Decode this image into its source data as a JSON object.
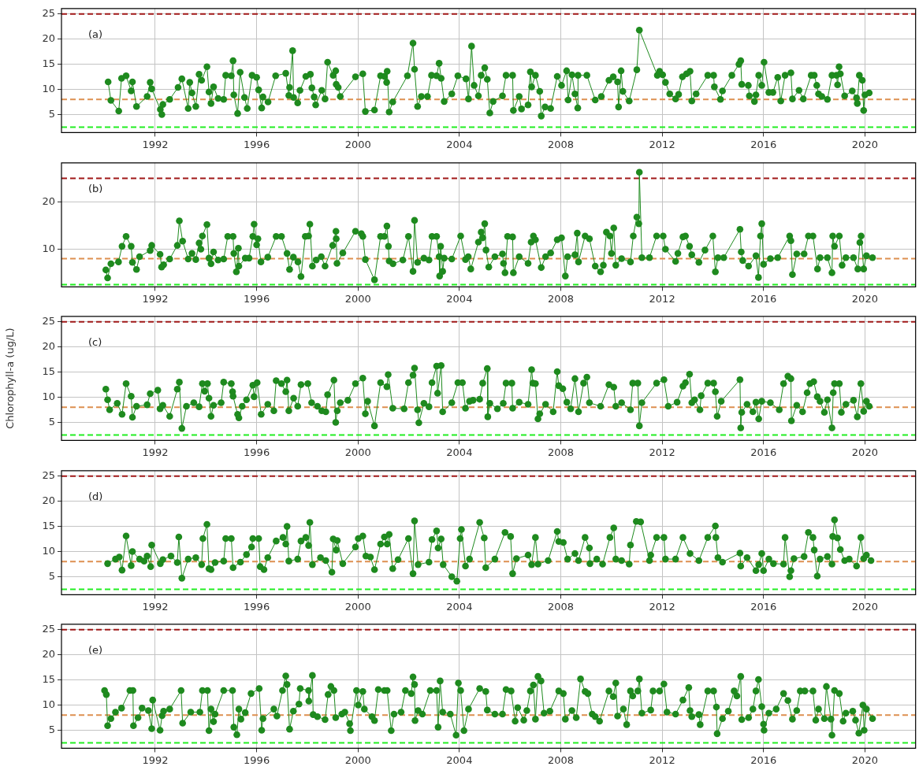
{
  "chart_data": [
    {
      "type": "line",
      "annotations": [
        "(a)"
      ],
      "marker": "circle",
      "grid": true,
      "xlim": [
        1988.3,
        2022.0
      ],
      "xticks": [
        1992,
        1996,
        2000,
        2004,
        2008,
        2012,
        2016,
        2020
      ],
      "ylim": [
        1.4,
        26.1
      ],
      "yticks": [
        5,
        10,
        15,
        20,
        25
      ],
      "ref_lines": [
        {
          "axis": "y",
          "value": 25,
          "color": "#a01818",
          "line_style": "dashed"
        },
        {
          "axis": "y",
          "value": 8,
          "color": "#dd9050",
          "line_style": "dashed"
        },
        {
          "axis": "y",
          "value": 2.5,
          "color": "#22ee22",
          "line_style": "dashed"
        }
      ],
      "x": [
        1990.14,
        1990.25,
        1990.56,
        1990.67,
        1990.85,
        1991.05,
        1991.1,
        1991.26,
        1991.68,
        1991.8,
        1991.86,
        1992.2,
        1992.26,
        1992.3,
        1992.57,
        1992.9,
        1993.05,
        1993.3,
        1993.36,
        1993.45,
        1993.6,
        1993.73,
        1993.83,
        1994.04,
        1994.12,
        1994.2,
        1994.3,
        1994.48,
        1994.7,
        1994.78,
        1995.0,
        1995.07,
        1995.1,
        1995.25,
        1995.35,
        1995.52,
        1995.63,
        1995.82,
        1996.0,
        1996.08,
        1996.2,
        1996.25,
        1996.45,
        1996.75,
        1997.15,
        1997.27,
        1997.3,
        1997.42,
        1997.46,
        1997.62,
        1997.71,
        1997.94,
        1998.12,
        1998.18,
        1998.27,
        1998.33,
        1998.57,
        1998.7,
        1998.8,
        1999.02,
        1999.12,
        1999.14,
        1999.22,
        1999.3,
        1999.9,
        2000.19,
        2000.29,
        2000.65,
        2000.89,
        2001.04,
        2001.13,
        2001.15,
        2001.23,
        2001.37,
        2001.95,
        2002.17,
        2002.23,
        2002.35,
        2002.5,
        2002.74,
        2002.9,
        2003.1,
        2003.2,
        2003.28,
        2003.4,
        2003.7,
        2003.94,
        2004.26,
        2004.36,
        2004.48,
        2004.58,
        2004.75,
        2004.86,
        2005.0,
        2005.1,
        2005.2,
        2005.33,
        2005.7,
        2005.84,
        2006.1,
        2006.13,
        2006.36,
        2006.45,
        2006.71,
        2006.8,
        2006.85,
        2007.0,
        2007.17,
        2007.23,
        2007.38,
        2007.6,
        2007.86,
        2008.03,
        2008.23,
        2008.29,
        2008.44,
        2008.56,
        2008.67,
        2008.68,
        2009.03,
        2009.36,
        2009.6,
        2009.9,
        2010.07,
        2010.24,
        2010.28,
        2010.38,
        2010.45,
        2010.7,
        2011.0,
        2011.1,
        2011.81,
        2011.9,
        2012.02,
        2012.13,
        2012.3,
        2012.53,
        2012.65,
        2012.8,
        2012.96,
        2013.1,
        2013.17,
        2013.34,
        2013.8,
        2014.03,
        2014.06,
        2014.3,
        2014.38,
        2014.75,
        2015.03,
        2015.1,
        2015.14,
        2015.4,
        2015.44,
        2015.64,
        2015.7,
        2015.81,
        2015.93,
        2016.02,
        2016.21,
        2016.37,
        2016.56,
        2016.68,
        2016.85,
        2017.08,
        2017.14,
        2017.4,
        2017.57,
        2017.88,
        2018.0,
        2018.1,
        2018.17,
        2018.3,
        2018.52,
        2018.7,
        2018.88,
        2018.92,
        2018.98,
        2019.03,
        2019.2,
        2019.5,
        2019.67,
        2019.7,
        2019.78,
        2019.9,
        2019.95,
        2020.0,
        2020.17
      ],
      "series": [
        {
          "color": "#1e8a1e",
          "values": [
            11.5,
            7.8,
            5.7,
            12.2,
            12.7,
            9.7,
            11.5,
            6.6,
            8.6,
            11.4,
            10.1,
            6,
            5,
            7,
            8,
            10.4,
            12.1,
            6.2,
            11.4,
            9.3,
            6.6,
            13,
            11.8,
            14.5,
            9.5,
            7.2,
            10.5,
            8.2,
            8,
            12.8,
            12.7,
            15.7,
            8.9,
            5.2,
            13.4,
            8.4,
            6.2,
            12.8,
            12.4,
            9.9,
            6.3,
            8.5,
            7.5,
            12.7,
            13.2,
            8.8,
            10.4,
            17.7,
            8.4,
            7.3,
            9.8,
            12.6,
            13,
            10.3,
            8.5,
            6.9,
            9.8,
            8.1,
            15.4,
            12.8,
            13.7,
            11,
            10.4,
            8.6,
            12.5,
            13.1,
            5.6,
            5.9,
            12.7,
            12.6,
            11.4,
            13.6,
            5.5,
            7.5,
            12.7,
            19.2,
            14,
            6.6,
            8.6,
            8.6,
            12.8,
            12.7,
            15.2,
            12.2,
            7.6,
            9.1,
            12.7,
            12.1,
            8.1,
            18.6,
            10.8,
            8.7,
            12.8,
            14.3,
            12,
            5.3,
            7.6,
            8.7,
            12.8,
            12.8,
            5.8,
            8.6,
            6.1,
            6.9,
            13.5,
            10.5,
            12.8,
            9.6,
            4.7,
            6.5,
            6.2,
            12.6,
            10.8,
            13.7,
            7.9,
            12.9,
            9.1,
            6.3,
            12.8,
            12.8,
            7.9,
            8.6,
            11.8,
            12.5,
            11.5,
            6.5,
            13.7,
            9.6,
            7.7,
            13.9,
            21.8,
            12.8,
            13.6,
            12.9,
            11.4,
            9.1,
            8.1,
            9,
            12.5,
            13.1,
            13.6,
            7.7,
            9.1,
            12.8,
            12.8,
            10.5,
            8,
            9.7,
            12.8,
            15,
            15.7,
            11,
            10.8,
            8.7,
            7.6,
            8.9,
            12.8,
            10.8,
            15.4,
            9.4,
            9.4,
            12.4,
            7.7,
            12.8,
            13.3,
            8.1,
            9.8,
            8.1,
            12.8,
            12.8,
            10.8,
            9.1,
            8.6,
            8,
            12.8,
            12.8,
            10.9,
            14.5,
            13.1,
            8.7,
            9.7,
            8.3,
            7.2,
            12.8,
            11.8,
            5.8,
            8.9,
            9.3
          ]
        }
      ]
    },
    {
      "type": "line",
      "annotations": [
        "(b)"
      ],
      "marker": "circle",
      "grid": true,
      "xlim": [
        1988.3,
        2022.0
      ],
      "xticks": [
        1992,
        1996,
        2000,
        2004,
        2008,
        2012,
        2016,
        2020
      ],
      "ylim": [
        2,
        28.3
      ],
      "yticks": [
        10,
        20
      ],
      "ref_lines": [
        {
          "axis": "y",
          "value": 25,
          "color": "#a01818",
          "line_style": "dashed"
        },
        {
          "axis": "y",
          "value": 8,
          "color": "#dd9050",
          "line_style": "dashed"
        },
        {
          "axis": "y",
          "value": 2.5,
          "color": "#22ee22",
          "line_style": "dashed"
        }
      ],
      "x": [
        1990.05,
        1990.12,
        1990.25,
        1990.55,
        1990.69,
        1990.85,
        1991.05,
        1991.1,
        1991.26,
        1991.38,
        1991.8,
        1991.86,
        1992.19,
        1992.25,
        1992.33,
        1992.57,
        1992.87,
        1992.95,
        1993.08,
        1993.3,
        1993.45,
        1993.6,
        1993.73,
        1993.8,
        1993.86,
        1994.04,
        1994.12,
        1994.2,
        1994.3,
        1994.48,
        1994.7,
        1994.86,
        1995.07,
        1995.1,
        1995.2,
        1995.28,
        1995.3,
        1995.55,
        1995.7,
        1995.85,
        1995.9,
        1996.0,
        1996.05,
        1996.17,
        1996.44,
        1996.77,
        1996.98,
        1997.2,
        1997.3,
        1997.45,
        1997.63,
        1997.75,
        1997.92,
        1998.05,
        1998.1,
        1998.2,
        1998.35,
        1998.55,
        1998.7,
        1999.0,
        1999.13,
        1999.14,
        1999.17,
        1999.4,
        1999.9,
        2000.13,
        2000.19,
        2000.29,
        2000.65,
        2000.89,
        2001.04,
        2001.14,
        2001.2,
        2001.23,
        2001.38,
        2001.77,
        2001.99,
        2002.17,
        2002.23,
        2002.35,
        2002.6,
        2002.8,
        2002.92,
        2003.1,
        2003.2,
        2003.22,
        2003.26,
        2003.34,
        2003.4,
        2003.7,
        2004.05,
        2004.24,
        2004.35,
        2004.45,
        2004.75,
        2004.86,
        2004.92,
        2005.0,
        2005.05,
        2005.16,
        2005.4,
        2005.7,
        2005.74,
        2005.8,
        2005.9,
        2006.1,
        2006.13,
        2006.36,
        2006.71,
        2006.83,
        2006.92,
        2007.0,
        2007.23,
        2007.4,
        2007.6,
        2007.86,
        2008.03,
        2008.18,
        2008.27,
        2008.56,
        2008.65,
        2008.7,
        2008.96,
        2009.13,
        2009.36,
        2009.57,
        2009.68,
        2009.8,
        2009.94,
        2010.0,
        2010.09,
        2010.17,
        2010.4,
        2010.75,
        2010.86,
        2011.0,
        2011.08,
        2011.1,
        2011.2,
        2011.5,
        2011.78,
        2012.04,
        2012.13,
        2012.53,
        2012.62,
        2012.82,
        2012.92,
        2013.08,
        2013.17,
        2013.45,
        2013.69,
        2014.0,
        2014.1,
        2014.2,
        2014.43,
        2015.07,
        2015.12,
        2015.18,
        2015.41,
        2015.7,
        2015.8,
        2015.88,
        2015.93,
        2016.0,
        2016.27,
        2016.56,
        2017.03,
        2017.08,
        2017.14,
        2017.31,
        2017.6,
        2017.77,
        2017.95,
        2018.13,
        2018.23,
        2018.52,
        2018.7,
        2018.73,
        2018.8,
        2018.99,
        2019.1,
        2019.25,
        2019.55,
        2019.72,
        2019.8,
        2019.85,
        2019.95,
        2020.06,
        2020.3
      ],
      "series": [
        {
          "color": "#1e8a1e",
          "values": [
            5.6,
            3.9,
            6.9,
            7.3,
            10.6,
            12.7,
            10.6,
            7.2,
            5.7,
            8.4,
            9.7,
            10.8,
            8.9,
            6.2,
            6.7,
            7.9,
            10.8,
            16,
            11.7,
            7.9,
            9.1,
            7.8,
            11.3,
            10,
            12.8,
            15.2,
            8.1,
            6.9,
            9.4,
            7.7,
            7.9,
            12.7,
            12.7,
            9.1,
            5.2,
            10.2,
            6.4,
            8.1,
            8.1,
            12.7,
            15.3,
            10.9,
            12.2,
            7.3,
            8.3,
            12.7,
            12.7,
            9.1,
            5.7,
            8.3,
            7.3,
            4.2,
            12.7,
            12.8,
            15.3,
            6.4,
            7.7,
            8.4,
            6.4,
            10.8,
            13.8,
            12.2,
            7,
            9.2,
            13.8,
            13.3,
            12.7,
            7.8,
            3.5,
            12.7,
            12.7,
            14.9,
            10.6,
            7.5,
            6.9,
            7.7,
            12.7,
            5.3,
            16.1,
            7.2,
            8.1,
            7.7,
            12.7,
            12.7,
            8.4,
            4.3,
            10.6,
            5.3,
            8.1,
            7.9,
            12.8,
            7.8,
            8.4,
            5.8,
            11.5,
            13.6,
            12.4,
            15.4,
            9.8,
            6.2,
            8.4,
            9,
            7,
            5,
            12.7,
            12.6,
            5,
            8.4,
            7,
            11.5,
            12.8,
            12,
            6.1,
            8.4,
            9.2,
            12,
            12.4,
            4.3,
            8.4,
            8.8,
            13.4,
            7.3,
            12.8,
            12.2,
            6.4,
            5.2,
            6.6,
            13.6,
            12.8,
            9.1,
            14.5,
            6.6,
            8,
            7.3,
            12.8,
            16.8,
            15.4,
            26.3,
            8.2,
            8.2,
            12.8,
            12.8,
            10,
            7.4,
            9.1,
            12.6,
            12.8,
            10.6,
            8.8,
            7.2,
            9.8,
            12.8,
            5.2,
            8.2,
            8.2,
            14.2,
            9.4,
            7.6,
            6.4,
            8.6,
            4,
            12.8,
            15.4,
            6.8,
            8,
            8.2,
            12.8,
            11.8,
            4.6,
            9,
            9,
            12.8,
            12.8,
            5.8,
            8.2,
            8.2,
            5,
            12.8,
            10.6,
            12.8,
            6.6,
            8.2,
            8.2,
            5.8,
            11.4,
            12.8,
            5.8,
            8.6,
            8.2
          ]
        }
      ]
    },
    {
      "type": "line",
      "annotations": [
        "(c)"
      ],
      "marker": "circle",
      "grid": true,
      "ylabel": "Chlorophyll-a (ug/L)",
      "xlim": [
        1988.3,
        2022.0
      ],
      "xticks": [
        1992,
        1996,
        2000,
        2004,
        2008,
        2012,
        2016,
        2020
      ],
      "ylim": [
        1.4,
        26.1
      ],
      "yticks": [
        5,
        10,
        15,
        20,
        25
      ],
      "ref_lines": [
        {
          "axis": "y",
          "value": 25,
          "color": "#a01818",
          "line_style": "dashed"
        },
        {
          "axis": "y",
          "value": 8,
          "color": "#dd9050",
          "line_style": "dashed"
        },
        {
          "axis": "y",
          "value": 2.5,
          "color": "#22ee22",
          "line_style": "dashed"
        }
      ],
      "x": [
        1990.05,
        1990.12,
        1990.2,
        1990.5,
        1990.69,
        1990.85,
        1991.05,
        1991.1,
        1991.26,
        1991.68,
        1991.8,
        1992.1,
        1992.19,
        1992.3,
        1992.57,
        1992.87,
        1992.95,
        1993.05,
        1993.23,
        1993.52,
        1993.73,
        1993.86,
        1993.95,
        1994.06,
        1994.12,
        1994.2,
        1994.3,
        1994.6,
        1994.7,
        1995.0,
        1995.05,
        1995.07,
        1995.25,
        1995.3,
        1995.43,
        1995.6,
        1995.85,
        1995.9,
        1996.02,
        1996.18,
        1996.44,
        1996.68,
        1996.77,
        1996.98,
        1997.15,
        1997.2,
        1997.27,
        1997.46,
        1997.62,
        1997.75,
        1998.02,
        1998.17,
        1998.4,
        1998.57,
        1998.73,
        1998.8,
        1999.05,
        1999.12,
        1999.18,
        1999.3,
        1999.6,
        1999.9,
        2000.19,
        2000.29,
        2000.38,
        2000.65,
        2000.89,
        2001.14,
        2001.19,
        2001.37,
        2001.82,
        2001.99,
        2002.17,
        2002.23,
        2002.35,
        2002.4,
        2002.6,
        2002.8,
        2002.92,
        2003.1,
        2003.14,
        2003.28,
        2003.34,
        2003.7,
        2003.94,
        2004.12,
        2004.24,
        2004.4,
        2004.54,
        2004.8,
        2004.92,
        2005.1,
        2005.12,
        2005.2,
        2005.5,
        2005.73,
        2005.84,
        2006.07,
        2006.1,
        2006.36,
        2006.71,
        2006.85,
        2006.9,
        2007.0,
        2007.1,
        2007.17,
        2007.4,
        2007.7,
        2007.86,
        2007.92,
        2008.08,
        2008.24,
        2008.39,
        2008.56,
        2008.7,
        2008.9,
        2009.03,
        2009.13,
        2009.57,
        2009.9,
        2010.09,
        2010.17,
        2010.4,
        2010.75,
        2010.84,
        2011.04,
        2011.1,
        2011.2,
        2011.78,
        2012.07,
        2012.24,
        2012.59,
        2012.82,
        2012.92,
        2013.08,
        2013.17,
        2013.28,
        2013.49,
        2013.54,
        2013.8,
        2014.03,
        2014.1,
        2014.17,
        2014.33,
        2015.07,
        2015.1,
        2015.14,
        2015.35,
        2015.58,
        2015.7,
        2015.81,
        2015.93,
        2016.27,
        2016.62,
        2016.79,
        2016.96,
        2017.08,
        2017.1,
        2017.31,
        2017.54,
        2017.72,
        2017.83,
        2017.98,
        2018.12,
        2018.23,
        2018.4,
        2018.52,
        2018.7,
        2018.75,
        2018.8,
        2018.99,
        2019.07,
        2019.25,
        2019.55,
        2019.7,
        2019.84,
        2019.95,
        2020.06,
        2020.17
      ],
      "series": [
        {
          "color": "#1e8a1e",
          "values": [
            11.6,
            9.5,
            7.5,
            8.8,
            6.6,
            12.7,
            10.2,
            6,
            8.2,
            8.5,
            10.7,
            11.4,
            7.7,
            8.4,
            6.2,
            11.6,
            13,
            3.8,
            8.2,
            8.9,
            8.1,
            12.7,
            11.2,
            12.7,
            9.8,
            6.2,
            8.4,
            8.9,
            13,
            12.7,
            11.1,
            10.2,
            6.6,
            5.9,
            8.2,
            9.5,
            12.4,
            10.1,
            12.9,
            6.6,
            8.6,
            7.3,
            13.3,
            12.7,
            11.1,
            13.4,
            7.3,
            9.8,
            8.2,
            12.5,
            12.7,
            8.9,
            8.2,
            7.3,
            7.1,
            10.5,
            13.4,
            5,
            7.3,
            8.9,
            9.4,
            12.7,
            13.8,
            6.7,
            9.2,
            4.3,
            12.9,
            12.1,
            14.5,
            7.8,
            7.7,
            12.9,
            14.4,
            15.8,
            7.5,
            4.9,
            8.8,
            8.1,
            12.9,
            16.2,
            10.8,
            16.3,
            7.1,
            8.9,
            12.9,
            12.9,
            7.8,
            9.2,
            9.4,
            9.6,
            12.8,
            15.7,
            6.1,
            8.8,
            7.7,
            8.8,
            12.8,
            12.8,
            7.8,
            9,
            8.6,
            15.5,
            12.8,
            12.7,
            5.7,
            6.7,
            8.6,
            7.1,
            15.1,
            12.3,
            11.7,
            9,
            7.7,
            13.7,
            7.1,
            12.8,
            14,
            8.9,
            8.2,
            12.5,
            12,
            8.2,
            8.9,
            7.5,
            12.8,
            12.8,
            4.3,
            8.9,
            12.8,
            13.5,
            8.2,
            9,
            12.2,
            12.9,
            14.6,
            8.9,
            9.5,
            7.5,
            10.3,
            12.8,
            12.8,
            11.1,
            6.2,
            9.2,
            13.5,
            3.9,
            7,
            8.6,
            7.1,
            9,
            5.7,
            9.2,
            8.9,
            7.5,
            12.7,
            14.2,
            13.7,
            5.3,
            8.4,
            7.1,
            10.9,
            12.7,
            13.1,
            10.1,
            9.2,
            7,
            9.5,
            3.9,
            10.9,
            12.7,
            12.7,
            7,
            8.6,
            9.4,
            6.1,
            12.7,
            7.2,
            9.2,
            8.2
          ]
        }
      ]
    },
    {
      "type": "line",
      "annotations": [
        "(d)"
      ],
      "marker": "circle",
      "grid": true,
      "xlim": [
        1988.3,
        2022.0
      ],
      "xticks": [
        1992,
        1996,
        2000,
        2004,
        2008,
        2012,
        2016,
        2020
      ],
      "ylim": [
        1.4,
        26.1
      ],
      "yticks": [
        5,
        10,
        15,
        20,
        25
      ],
      "ref_lines": [
        {
          "axis": "y",
          "value": 25,
          "color": "#a01818",
          "line_style": "dashed"
        },
        {
          "axis": "y",
          "value": 8,
          "color": "#dd9050",
          "line_style": "dashed"
        },
        {
          "axis": "y",
          "value": 2.5,
          "color": "#22ee22",
          "line_style": "dashed"
        }
      ],
      "x": [
        1990.12,
        1990.43,
        1990.58,
        1990.69,
        1990.85,
        1991.05,
        1991.1,
        1991.38,
        1991.56,
        1991.68,
        1991.82,
        1991.86,
        1992.2,
        1992.3,
        1992.62,
        1992.87,
        1992.93,
        1993.05,
        1993.3,
        1993.6,
        1993.83,
        1993.88,
        1994.04,
        1994.12,
        1994.2,
        1994.36,
        1994.7,
        1994.78,
        1995.0,
        1995.07,
        1995.36,
        1995.6,
        1995.8,
        1995.85,
        1996.08,
        1996.14,
        1996.29,
        1996.44,
        1996.77,
        1997.04,
        1997.15,
        1997.2,
        1997.27,
        1997.62,
        1997.75,
        1997.94,
        1998.05,
        1998.1,
        1998.2,
        1998.52,
        1998.73,
        1998.97,
        1999.02,
        1999.14,
        1999.18,
        1999.4,
        1999.9,
        2000.01,
        2000.19,
        2000.31,
        2000.49,
        2000.65,
        2000.89,
        2001.04,
        2001.15,
        2001.23,
        2001.37,
        2001.58,
        2001.99,
        2002.17,
        2002.23,
        2002.37,
        2002.8,
        2002.92,
        2003.1,
        2003.16,
        2003.28,
        2003.36,
        2003.7,
        2003.9,
        2004.03,
        2004.08,
        2004.24,
        2004.4,
        2004.8,
        2004.98,
        2005.04,
        2005.4,
        2005.8,
        2006.02,
        2006.1,
        2006.25,
        2006.71,
        2006.85,
        2007.0,
        2007.1,
        2007.5,
        2007.86,
        2007.92,
        2008.1,
        2008.27,
        2008.56,
        2008.7,
        2008.96,
        2009.13,
        2009.15,
        2009.42,
        2009.65,
        2009.94,
        2010.09,
        2010.17,
        2010.4,
        2010.7,
        2010.75,
        2010.98,
        2011.15,
        2011.5,
        2011.55,
        2011.78,
        2012.07,
        2012.13,
        2012.53,
        2012.82,
        2013.1,
        2013.45,
        2013.8,
        2014.1,
        2014.12,
        2014.2,
        2014.38,
        2015.07,
        2015.1,
        2015.35,
        2015.7,
        2015.81,
        2015.93,
        2016.0,
        2016.21,
        2016.39,
        2016.79,
        2016.85,
        2017.03,
        2017.08,
        2017.2,
        2017.6,
        2017.77,
        2017.95,
        2018.0,
        2018.12,
        2018.23,
        2018.52,
        2018.7,
        2018.73,
        2018.8,
        2018.92,
        2019.03,
        2019.2,
        2019.38,
        2019.67,
        2019.84,
        2019.95,
        2020.06,
        2020.24
      ],
      "series": [
        {
          "color": "#1e8a1e",
          "values": [
            7.6,
            8.5,
            8.9,
            6.3,
            13.1,
            7.2,
            10,
            8.5,
            8.1,
            9.1,
            7,
            11.3,
            7.6,
            8.4,
            9.1,
            7.8,
            12.9,
            4.7,
            8.5,
            8.8,
            7.4,
            12.6,
            15.4,
            6.6,
            6.4,
            7.8,
            8.1,
            12.6,
            12.6,
            6.8,
            7.9,
            9.4,
            10.9,
            12.6,
            12.6,
            7,
            6.4,
            8.8,
            12.1,
            12.8,
            11.5,
            15,
            8.1,
            8.5,
            12.1,
            12.8,
            11.2,
            15.8,
            7.4,
            8.8,
            8.2,
            5.9,
            12.5,
            10.3,
            12.2,
            7.6,
            10.9,
            12.6,
            13.1,
            9.1,
            8.9,
            6.4,
            11.5,
            12.9,
            11.5,
            13.4,
            6.6,
            8.4,
            12.6,
            5.6,
            16.1,
            7.4,
            7.9,
            12.4,
            14.1,
            10.7,
            12.5,
            7.4,
            5,
            4.1,
            12.6,
            14.4,
            7.1,
            8.5,
            15.8,
            12.7,
            6.8,
            8.5,
            13.8,
            13,
            5.6,
            8.6,
            9.3,
            7.4,
            12.8,
            7.5,
            8.2,
            14,
            12,
            11.8,
            8.5,
            9.6,
            8.2,
            12.8,
            10.7,
            7.6,
            8.5,
            7.5,
            12.8,
            14.7,
            8.5,
            8.2,
            7.5,
            11.3,
            16,
            15.9,
            8.2,
            9.3,
            12.8,
            12.8,
            8.5,
            8.5,
            12.8,
            9.6,
            8.2,
            12.8,
            15.1,
            12.8,
            8.8,
            7.9,
            9.7,
            7.1,
            8.8,
            6.2,
            7.4,
            9.6,
            6.2,
            8.5,
            7.6,
            7.5,
            12.8,
            5,
            6.2,
            8.6,
            9,
            13.8,
            12.8,
            10.3,
            5.1,
            8.5,
            9,
            7.5,
            13,
            16.3,
            12.7,
            10.4,
            8.2,
            8.5,
            7.1,
            12.8,
            8.6,
            9.3,
            8.2
          ]
        }
      ]
    },
    {
      "type": "line",
      "annotations": [
        "(e)"
      ],
      "marker": "circle",
      "grid": true,
      "xlim": [
        1988.3,
        2022.0
      ],
      "xticks": [
        1992,
        1996,
        2000,
        2004,
        2008,
        2012,
        2016,
        2020
      ],
      "ylim": [
        1.4,
        26.1
      ],
      "yticks": [
        5,
        10,
        15,
        20,
        25
      ],
      "ref_lines": [
        {
          "axis": "y",
          "value": 25,
          "color": "#a01818",
          "line_style": "dashed"
        },
        {
          "axis": "y",
          "value": 8,
          "color": "#dd9050",
          "line_style": "dashed"
        },
        {
          "axis": "y",
          "value": 2.5,
          "color": "#22ee22",
          "line_style": "dashed"
        }
      ],
      "x": [
        1990.0,
        1990.07,
        1990.12,
        1990.25,
        1990.43,
        1990.67,
        1991.0,
        1991.12,
        1991.14,
        1991.32,
        1991.48,
        1991.73,
        1991.86,
        1991.9,
        1992.19,
        1992.27,
        1992.33,
        1992.57,
        1993.02,
        1993.08,
        1993.4,
        1993.76,
        1993.86,
        1994.06,
        1994.12,
        1994.2,
        1994.3,
        1994.36,
        1994.7,
        1995.05,
        1995.1,
        1995.22,
        1995.3,
        1995.38,
        1995.55,
        1995.78,
        1996.1,
        1996.2,
        1996.25,
        1996.68,
        1996.8,
        1997.02,
        1997.15,
        1997.2,
        1997.3,
        1997.45,
        1997.67,
        1997.72,
        1998.05,
        1998.06,
        1998.2,
        1998.23,
        1998.4,
        1998.7,
        1998.82,
        1998.93,
        1999.05,
        1999.12,
        1999.36,
        1999.48,
        1999.67,
        1999.7,
        1999.94,
        2000.01,
        2000.19,
        2000.25,
        2000.55,
        2000.65,
        2000.8,
        2001.04,
        2001.15,
        2001.31,
        2001.42,
        2001.7,
        2001.87,
        2002.1,
        2002.17,
        2002.23,
        2002.25,
        2002.37,
        2002.54,
        2002.85,
        2003.1,
        2003.16,
        2003.24,
        2003.34,
        2003.64,
        2003.87,
        2003.96,
        2004.05,
        2004.18,
        2004.36,
        2004.8,
        2005.04,
        2005.1,
        2005.4,
        2005.7,
        2005.84,
        2006.04,
        2006.2,
        2006.3,
        2006.54,
        2006.66,
        2006.8,
        2006.92,
        2007.0,
        2007.1,
        2007.22,
        2007.34,
        2007.57,
        2007.92,
        2008.1,
        2008.18,
        2008.44,
        2008.61,
        2008.78,
        2008.96,
        2009.07,
        2009.24,
        2009.36,
        2009.53,
        2009.9,
        2010.07,
        2010.17,
        2010.24,
        2010.47,
        2010.6,
        2010.75,
        2010.84,
        2011.04,
        2011.1,
        2011.2,
        2011.55,
        2011.64,
        2011.9,
        2012.07,
        2012.19,
        2012.53,
        2012.82,
        2013.05,
        2013.1,
        2013.17,
        2013.45,
        2013.5,
        2013.8,
        2014.03,
        2014.14,
        2014.17,
        2014.38,
        2014.61,
        2014.84,
        2014.95,
        2015.1,
        2015.14,
        2015.41,
        2015.58,
        2015.7,
        2015.8,
        2015.93,
        2016.0,
        2016.02,
        2016.21,
        2016.5,
        2016.79,
        2016.96,
        2017.14,
        2017.31,
        2017.45,
        2017.63,
        2017.95,
        2018.06,
        2018.17,
        2018.4,
        2018.48,
        2018.66,
        2018.7,
        2018.8,
        2018.99,
        2019.14,
        2019.25,
        2019.52,
        2019.63,
        2019.76,
        2019.92,
        2019.97,
        2020.06,
        2020.3
      ],
      "series": [
        {
          "color": "#1e8a1e",
          "values": [
            12.9,
            12.1,
            5.9,
            7.3,
            8.6,
            9.4,
            12.9,
            12.9,
            5.9,
            7.5,
            9.4,
            8.9,
            5.3,
            11,
            5,
            7.9,
            8.8,
            9.2,
            12.9,
            6.4,
            8.6,
            8.6,
            12.9,
            12.9,
            4.9,
            9.2,
            6.7,
            8.2,
            12.9,
            12.9,
            5.6,
            4.1,
            9.2,
            7.2,
            8.5,
            12.3,
            13.3,
            5,
            7.3,
            9.2,
            7.8,
            12.9,
            15.8,
            14.1,
            5.2,
            8.8,
            10.2,
            13.3,
            12.9,
            10.8,
            15.9,
            8.1,
            7.7,
            7.1,
            12.1,
            13.7,
            12.9,
            7.5,
            8.2,
            8.6,
            6.3,
            4.9,
            12.9,
            10,
            12.7,
            9.2,
            7.7,
            6.9,
            13.1,
            12.9,
            12.9,
            4.9,
            8.2,
            8.6,
            12.9,
            12.3,
            15.6,
            14.1,
            6.9,
            8.9,
            8.2,
            12.9,
            12.9,
            5.6,
            14.8,
            8.6,
            8.2,
            4,
            14.4,
            12.9,
            4.9,
            9.2,
            13.3,
            12.7,
            9,
            8.2,
            8.2,
            13.1,
            12.8,
            6.8,
            9.5,
            7,
            8.9,
            12.8,
            14,
            7.2,
            15.7,
            14.8,
            8.4,
            8.8,
            12.8,
            12.3,
            7.2,
            8.9,
            7.5,
            15.2,
            12.7,
            12.3,
            8.2,
            7.7,
            6.8,
            12.8,
            11.7,
            14.4,
            7.8,
            9.2,
            6.1,
            12.8,
            11.8,
            12.8,
            15.2,
            8.4,
            9,
            12.8,
            12.8,
            14.2,
            8.6,
            8.2,
            11,
            13.5,
            8.9,
            7.7,
            8.1,
            6.1,
            12.8,
            12.8,
            9.6,
            4.3,
            7.3,
            8.8,
            12.8,
            11.8,
            15.7,
            7.1,
            7.5,
            9.2,
            12.8,
            15.1,
            9.7,
            6.2,
            5,
            8.4,
            9.2,
            12.3,
            10.9,
            7.2,
            8.9,
            12.8,
            12.8,
            12.8,
            7,
            9.2,
            7.3,
            13.7,
            7.2,
            4,
            12.9,
            12.3,
            6.8,
            8.4,
            8.8,
            7,
            4.4,
            10,
            5,
            9.2,
            7.3
          ]
        }
      ]
    }
  ]
}
